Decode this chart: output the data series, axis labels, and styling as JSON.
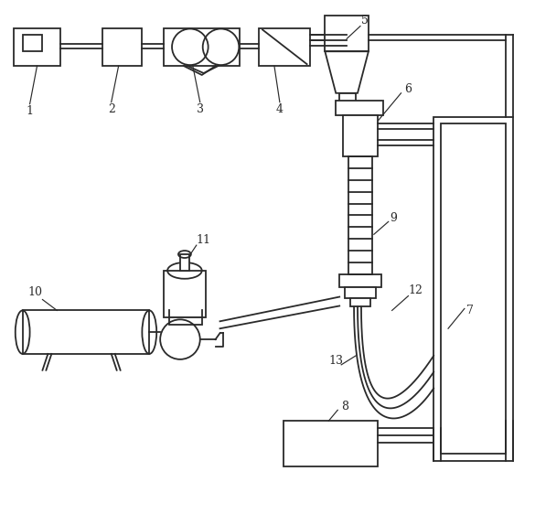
{
  "fig_width": 5.85,
  "fig_height": 5.62,
  "dpi": 100,
  "bg_color": "#ffffff",
  "line_color": "#2a2a2a",
  "lw": 1.3
}
